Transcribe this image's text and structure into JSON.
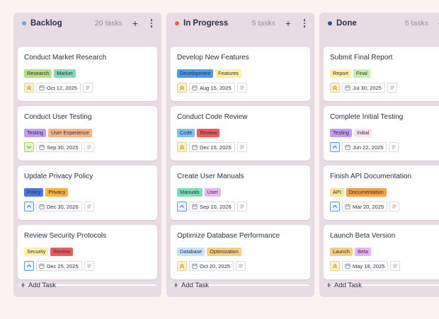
{
  "columns": [
    {
      "id": "backlog",
      "title": "Backlog",
      "count": "20 tasks",
      "dot_color": "#5aa9ef",
      "add_label": "Add Task",
      "cards": [
        {
          "title": "Conduct Market Research",
          "tags": [
            {
              "label": "Research",
              "color": "#b8e07c"
            },
            {
              "label": "Market",
              "color": "#7fdcb8"
            }
          ],
          "priority": "highest",
          "date": "Oct 12, 2025"
        },
        {
          "title": "Conduct User Testing",
          "tags": [
            {
              "label": "Testing",
              "color": "#c49cf0"
            },
            {
              "label": "User Experience",
              "color": "#f7b584"
            }
          ],
          "priority": "low",
          "date": "Sep 30, 2025"
        },
        {
          "title": "Update Privacy Policy",
          "tags": [
            {
              "label": "Policy",
              "color": "#4a77e8"
            },
            {
              "label": "Privacy",
              "color": "#fbb13c"
            }
          ],
          "priority": "medium",
          "date": "Dec 30, 2026"
        },
        {
          "title": "Review Security Protocols",
          "tags": [
            {
              "label": "Security",
              "color": "#fff0a6"
            },
            {
              "label": "Review",
              "color": "#f05a5a"
            }
          ],
          "priority": "medium",
          "date": "Dec 25, 2025"
        }
      ]
    },
    {
      "id": "in-progress",
      "title": "In Progress",
      "count": "5 tasks",
      "dot_color": "#ef5b50",
      "add_label": "Add Task",
      "cards": [
        {
          "title": "Develop New Features",
          "tags": [
            {
              "label": "Development",
              "color": "#4a9bf0"
            },
            {
              "label": "Features",
              "color": "#fff0a6"
            }
          ],
          "priority": "highest",
          "date": "Aug 15, 2025"
        },
        {
          "title": "Conduct Code Review",
          "tags": [
            {
              "label": "Code",
              "color": "#7ec0f3"
            },
            {
              "label": "Review",
              "color": "#f05a5a"
            }
          ],
          "priority": "highest",
          "date": "Dec 15, 2025"
        },
        {
          "title": "Create User Manuals",
          "tags": [
            {
              "label": "Manuals",
              "color": "#7fdcb8"
            },
            {
              "label": "User",
              "color": "#e8b5f0"
            }
          ],
          "priority": "medium",
          "date": "Sep 10, 2026"
        },
        {
          "title": "Optimize Database Performance",
          "tags": [
            {
              "label": "Database",
              "color": "#c9e3f8"
            },
            {
              "label": "Optimization",
              "color": "#fbcf7d"
            }
          ],
          "priority": "highest",
          "date": "Oct 20, 2025"
        }
      ]
    },
    {
      "id": "done",
      "title": "Done",
      "count": "5 tasks",
      "dot_color": "#2f4f9d",
      "add_label": "Add Task",
      "cards": [
        {
          "title": "Submit Final Report",
          "tags": [
            {
              "label": "Report",
              "color": "#fff0a6"
            },
            {
              "label": "Final",
              "color": "#c9f0b0"
            }
          ],
          "priority": "highest",
          "date": "Jul 30, 2025"
        },
        {
          "title": "Complete Initial Testing",
          "tags": [
            {
              "label": "Testing",
              "color": "#c49cf0"
            },
            {
              "label": "Initial",
              "color": "#fbe1ef"
            }
          ],
          "priority": "medium",
          "date": "Jun 22, 2025"
        },
        {
          "title": "Finish API Documentation",
          "tags": [
            {
              "label": "API",
              "color": "#fde39a"
            },
            {
              "label": "Documentation",
              "color": "#f4a04a"
            }
          ],
          "priority": "medium",
          "date": "Mar 20, 2025"
        },
        {
          "title": "Launch Beta Version",
          "tags": [
            {
              "label": "Launch",
              "color": "#fbcf7d"
            },
            {
              "label": "Beta",
              "color": "#e8b5f0"
            }
          ],
          "priority": "highest",
          "date": "May 18, 2025"
        }
      ]
    }
  ],
  "priority_styles": {
    "highest": {
      "icon": "double-chevron-up-icon",
      "bg": "#fbf3cf",
      "border": "#e8d488",
      "fg": "#c79a16"
    },
    "medium": {
      "icon": "chevron-up-icon",
      "bg": "#eaf4fd",
      "border": "#5c9bd6",
      "fg": "#3a78c2"
    },
    "low": {
      "icon": "chevron-down-icon",
      "bg": "#e6f7c8",
      "border": "#a9d36a",
      "fg": "#6a9a22"
    }
  },
  "icons": {
    "add": "plus-icon",
    "menu": "more-vertical-icon",
    "date": "calendar-icon",
    "description": "description-lines-icon"
  }
}
